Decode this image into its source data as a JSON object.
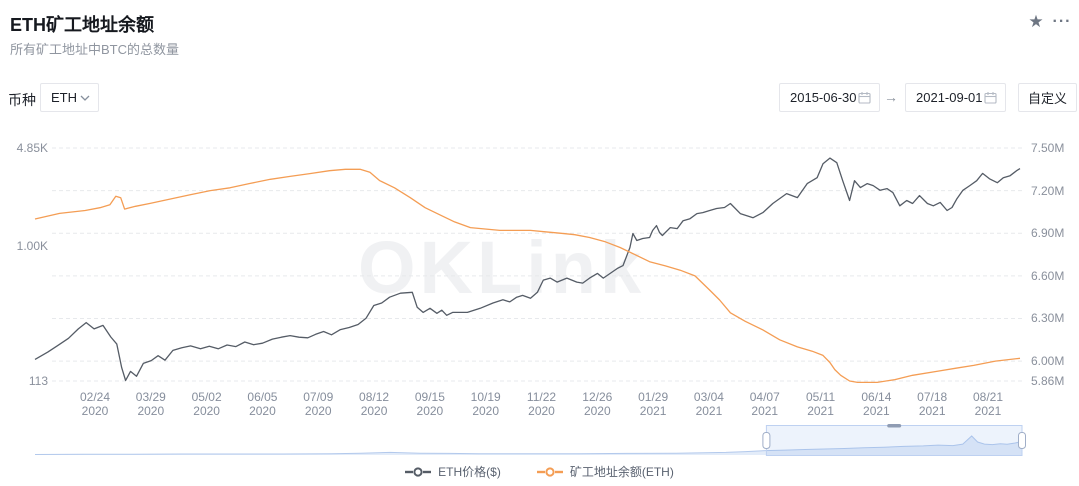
{
  "header": {
    "title": "ETH矿工地址余额",
    "subtitle": "所有矿工地址中BTC的总数量"
  },
  "toolbar": {
    "favorite_icon": "star-icon",
    "more_icon": "more-icon"
  },
  "filters": {
    "coin_label": "币种",
    "coin_value": "ETH",
    "date_start": "2015-06-30",
    "date_end": "2021-09-01",
    "arrow": "→",
    "custom_label": "自定义"
  },
  "watermark": "OKLink",
  "legend": [
    {
      "label": "ETH价格($)",
      "color": "#555C66"
    },
    {
      "label": "矿工地址余额(ETH)",
      "color": "#F49D54"
    }
  ],
  "chart_data": {
    "type": "line",
    "title": "ETH矿工地址余额",
    "x_range": [
      "2020-01-19",
      "2021-09-01"
    ],
    "x_tick_labels": [
      [
        "02/24",
        "2020"
      ],
      [
        "03/29",
        "2020"
      ],
      [
        "05/02",
        "2020"
      ],
      [
        "06/05",
        "2020"
      ],
      [
        "07/09",
        "2020"
      ],
      [
        "08/12",
        "2020"
      ],
      [
        "09/15",
        "2020"
      ],
      [
        "10/19",
        "2020"
      ],
      [
        "11/22",
        "2020"
      ],
      [
        "12/26",
        "2020"
      ],
      [
        "01/29",
        "2021"
      ],
      [
        "03/04",
        "2021"
      ],
      [
        "04/07",
        "2021"
      ],
      [
        "05/11",
        "2021"
      ],
      [
        "06/14",
        "2021"
      ],
      [
        "07/18",
        "2021"
      ],
      [
        "08/21",
        "2021"
      ]
    ],
    "left_axis": {
      "scale": "log",
      "min": 113,
      "max": 4850,
      "unit": "$",
      "ticks": [
        {
          "label": "4.85K",
          "value": 4850
        },
        {
          "label": "1.00K",
          "value": 1000
        },
        {
          "label": "113",
          "value": 113
        }
      ]
    },
    "right_axis": {
      "scale": "linear",
      "min": 5.86,
      "max": 7.5,
      "unit": "M ETH",
      "ticks": [
        {
          "label": "7.50M",
          "value": 7.5
        },
        {
          "label": "7.20M",
          "value": 7.2
        },
        {
          "label": "6.90M",
          "value": 6.9
        },
        {
          "label": "6.60M",
          "value": 6.6
        },
        {
          "label": "6.30M",
          "value": 6.3
        },
        {
          "label": "6.00M",
          "value": 6.0
        },
        {
          "label": "5.86M",
          "value": 5.86
        }
      ]
    },
    "grid": "dashed-horizontal",
    "legend_position": "bottom",
    "series": [
      {
        "name": "ETH价格($)",
        "axis": "left",
        "color": "#555C66",
        "points": [
          [
            0,
            160
          ],
          [
            0.013,
            180
          ],
          [
            0.023,
            200
          ],
          [
            0.034,
            225
          ],
          [
            0.044,
            262
          ],
          [
            0.052,
            290
          ],
          [
            0.06,
            262
          ],
          [
            0.069,
            277
          ],
          [
            0.077,
            230
          ],
          [
            0.083,
            205
          ],
          [
            0.088,
            140
          ],
          [
            0.092,
            114
          ],
          [
            0.097,
            132
          ],
          [
            0.103,
            122
          ],
          [
            0.11,
            150
          ],
          [
            0.118,
            157
          ],
          [
            0.125,
            170
          ],
          [
            0.132,
            158
          ],
          [
            0.14,
            185
          ],
          [
            0.149,
            193
          ],
          [
            0.158,
            199
          ],
          [
            0.168,
            190
          ],
          [
            0.177,
            198
          ],
          [
            0.186,
            190
          ],
          [
            0.195,
            202
          ],
          [
            0.204,
            197
          ],
          [
            0.213,
            212
          ],
          [
            0.222,
            203
          ],
          [
            0.231,
            208
          ],
          [
            0.241,
            222
          ],
          [
            0.25,
            229
          ],
          [
            0.259,
            235
          ],
          [
            0.268,
            229
          ],
          [
            0.277,
            227
          ],
          [
            0.285,
            240
          ],
          [
            0.293,
            251
          ],
          [
            0.301,
            238
          ],
          [
            0.31,
            259
          ],
          [
            0.319,
            268
          ],
          [
            0.328,
            281
          ],
          [
            0.336,
            311
          ],
          [
            0.344,
            382
          ],
          [
            0.352,
            398
          ],
          [
            0.36,
            437
          ],
          [
            0.371,
            466
          ],
          [
            0.383,
            473
          ],
          [
            0.388,
            371
          ],
          [
            0.394,
            342
          ],
          [
            0.401,
            365
          ],
          [
            0.408,
            337
          ],
          [
            0.413,
            354
          ],
          [
            0.418,
            326
          ],
          [
            0.424,
            342
          ],
          [
            0.439,
            342
          ],
          [
            0.452,
            365
          ],
          [
            0.465,
            398
          ],
          [
            0.475,
            419
          ],
          [
            0.482,
            405
          ],
          [
            0.489,
            437
          ],
          [
            0.495,
            450
          ],
          [
            0.503,
            430
          ],
          [
            0.51,
            473
          ],
          [
            0.516,
            576
          ],
          [
            0.523,
            594
          ],
          [
            0.53,
            557
          ],
          [
            0.54,
            594
          ],
          [
            0.55,
            557
          ],
          [
            0.556,
            548
          ],
          [
            0.563,
            594
          ],
          [
            0.571,
            641
          ],
          [
            0.577,
            594
          ],
          [
            0.584,
            641
          ],
          [
            0.591,
            693
          ],
          [
            0.597,
            727
          ],
          [
            0.604,
            973
          ],
          [
            0.607,
            1220
          ],
          [
            0.611,
            1091
          ],
          [
            0.617,
            1127
          ],
          [
            0.624,
            1145
          ],
          [
            0.627,
            1281
          ],
          [
            0.631,
            1387
          ],
          [
            0.634,
            1241
          ],
          [
            0.637,
            1182
          ],
          [
            0.645,
            1343
          ],
          [
            0.652,
            1321
          ],
          [
            0.658,
            1502
          ],
          [
            0.665,
            1551
          ],
          [
            0.672,
            1684
          ],
          [
            0.678,
            1711
          ],
          [
            0.685,
            1768
          ],
          [
            0.692,
            1826
          ],
          [
            0.7,
            1856
          ],
          [
            0.706,
            1982
          ],
          [
            0.716,
            1684
          ],
          [
            0.729,
            1575
          ],
          [
            0.739,
            1711
          ],
          [
            0.749,
            1982
          ],
          [
            0.763,
            2323
          ],
          [
            0.774,
            2180
          ],
          [
            0.784,
            2730
          ],
          [
            0.794,
            3003
          ],
          [
            0.8,
            3766
          ],
          [
            0.807,
            4122
          ],
          [
            0.814,
            3827
          ],
          [
            0.82,
            2860
          ],
          [
            0.827,
            2080
          ],
          [
            0.832,
            2860
          ],
          [
            0.838,
            2560
          ],
          [
            0.845,
            2730
          ],
          [
            0.851,
            2645
          ],
          [
            0.858,
            2450
          ],
          [
            0.865,
            2520
          ],
          [
            0.871,
            2360
          ],
          [
            0.878,
            1910
          ],
          [
            0.885,
            2080
          ],
          [
            0.891,
            1982
          ],
          [
            0.898,
            2250
          ],
          [
            0.906,
            1982
          ],
          [
            0.912,
            1910
          ],
          [
            0.919,
            2015
          ],
          [
            0.926,
            1768
          ],
          [
            0.931,
            1856
          ],
          [
            0.936,
            2145
          ],
          [
            0.942,
            2450
          ],
          [
            0.949,
            2645
          ],
          [
            0.956,
            2860
          ],
          [
            0.962,
            3220
          ],
          [
            0.969,
            2950
          ],
          [
            0.977,
            2770
          ],
          [
            0.983,
            3003
          ],
          [
            0.99,
            3100
          ],
          [
            0.997,
            3380
          ],
          [
            1,
            3480
          ]
        ]
      },
      {
        "name": "矿工地址余额(ETH)",
        "axis": "right",
        "color": "#F49D54",
        "points": [
          [
            0,
            7.0
          ],
          [
            0.025,
            7.04
          ],
          [
            0.051,
            7.06
          ],
          [
            0.066,
            7.08
          ],
          [
            0.076,
            7.1
          ],
          [
            0.082,
            7.16
          ],
          [
            0.087,
            7.15
          ],
          [
            0.091,
            7.07
          ],
          [
            0.102,
            7.09
          ],
          [
            0.117,
            7.11
          ],
          [
            0.137,
            7.14
          ],
          [
            0.157,
            7.17
          ],
          [
            0.178,
            7.2
          ],
          [
            0.198,
            7.22
          ],
          [
            0.218,
            7.25
          ],
          [
            0.239,
            7.28
          ],
          [
            0.259,
            7.3
          ],
          [
            0.279,
            7.32
          ],
          [
            0.299,
            7.34
          ],
          [
            0.315,
            7.35
          ],
          [
            0.33,
            7.35
          ],
          [
            0.34,
            7.33
          ],
          [
            0.35,
            7.27
          ],
          [
            0.365,
            7.22
          ],
          [
            0.381,
            7.15
          ],
          [
            0.396,
            7.08
          ],
          [
            0.411,
            7.03
          ],
          [
            0.426,
            6.98
          ],
          [
            0.442,
            6.94
          ],
          [
            0.457,
            6.93
          ],
          [
            0.472,
            6.92
          ],
          [
            0.487,
            6.92
          ],
          [
            0.503,
            6.92
          ],
          [
            0.518,
            6.91
          ],
          [
            0.533,
            6.9
          ],
          [
            0.548,
            6.89
          ],
          [
            0.563,
            6.87
          ],
          [
            0.579,
            6.84
          ],
          [
            0.594,
            6.8
          ],
          [
            0.609,
            6.75
          ],
          [
            0.624,
            6.7
          ],
          [
            0.64,
            6.67
          ],
          [
            0.655,
            6.64
          ],
          [
            0.67,
            6.6
          ],
          [
            0.685,
            6.5
          ],
          [
            0.695,
            6.43
          ],
          [
            0.706,
            6.34
          ],
          [
            0.721,
            6.28
          ],
          [
            0.739,
            6.22
          ],
          [
            0.756,
            6.15
          ],
          [
            0.774,
            6.1
          ],
          [
            0.789,
            6.07
          ],
          [
            0.8,
            6.04
          ],
          [
            0.807,
            5.99
          ],
          [
            0.812,
            5.94
          ],
          [
            0.818,
            5.9
          ],
          [
            0.827,
            5.86
          ],
          [
            0.835,
            5.85
          ],
          [
            0.855,
            5.85
          ],
          [
            0.873,
            5.87
          ],
          [
            0.891,
            5.9
          ],
          [
            0.917,
            5.93
          ],
          [
            0.935,
            5.95
          ],
          [
            0.953,
            5.97
          ],
          [
            0.975,
            6.0
          ],
          [
            1,
            6.02
          ]
        ]
      }
    ],
    "navigator": {
      "window_start": 0.741,
      "window_end": 1.0,
      "profile": [
        [
          0,
          0.02
        ],
        [
          0.05,
          0.03
        ],
        [
          0.1,
          0.03
        ],
        [
          0.15,
          0.04
        ],
        [
          0.2,
          0.04
        ],
        [
          0.25,
          0.04
        ],
        [
          0.3,
          0.05
        ],
        [
          0.33,
          0.07
        ],
        [
          0.36,
          0.1
        ],
        [
          0.39,
          0.07
        ],
        [
          0.42,
          0.06
        ],
        [
          0.45,
          0.05
        ],
        [
          0.5,
          0.05
        ],
        [
          0.55,
          0.05
        ],
        [
          0.6,
          0.06
        ],
        [
          0.65,
          0.07
        ],
        [
          0.7,
          0.1
        ],
        [
          0.72,
          0.13
        ],
        [
          0.74,
          0.17
        ],
        [
          0.76,
          0.19
        ],
        [
          0.78,
          0.21
        ],
        [
          0.8,
          0.23
        ],
        [
          0.82,
          0.25
        ],
        [
          0.84,
          0.28
        ],
        [
          0.86,
          0.3
        ],
        [
          0.88,
          0.33
        ],
        [
          0.9,
          0.35
        ],
        [
          0.915,
          0.38
        ],
        [
          0.93,
          0.36
        ],
        [
          0.94,
          0.42
        ],
        [
          0.949,
          0.73
        ],
        [
          0.955,
          0.5
        ],
        [
          0.962,
          0.42
        ],
        [
          0.97,
          0.4
        ],
        [
          0.978,
          0.43
        ],
        [
          0.985,
          0.41
        ],
        [
          0.993,
          0.46
        ],
        [
          1,
          0.52
        ]
      ]
    }
  }
}
